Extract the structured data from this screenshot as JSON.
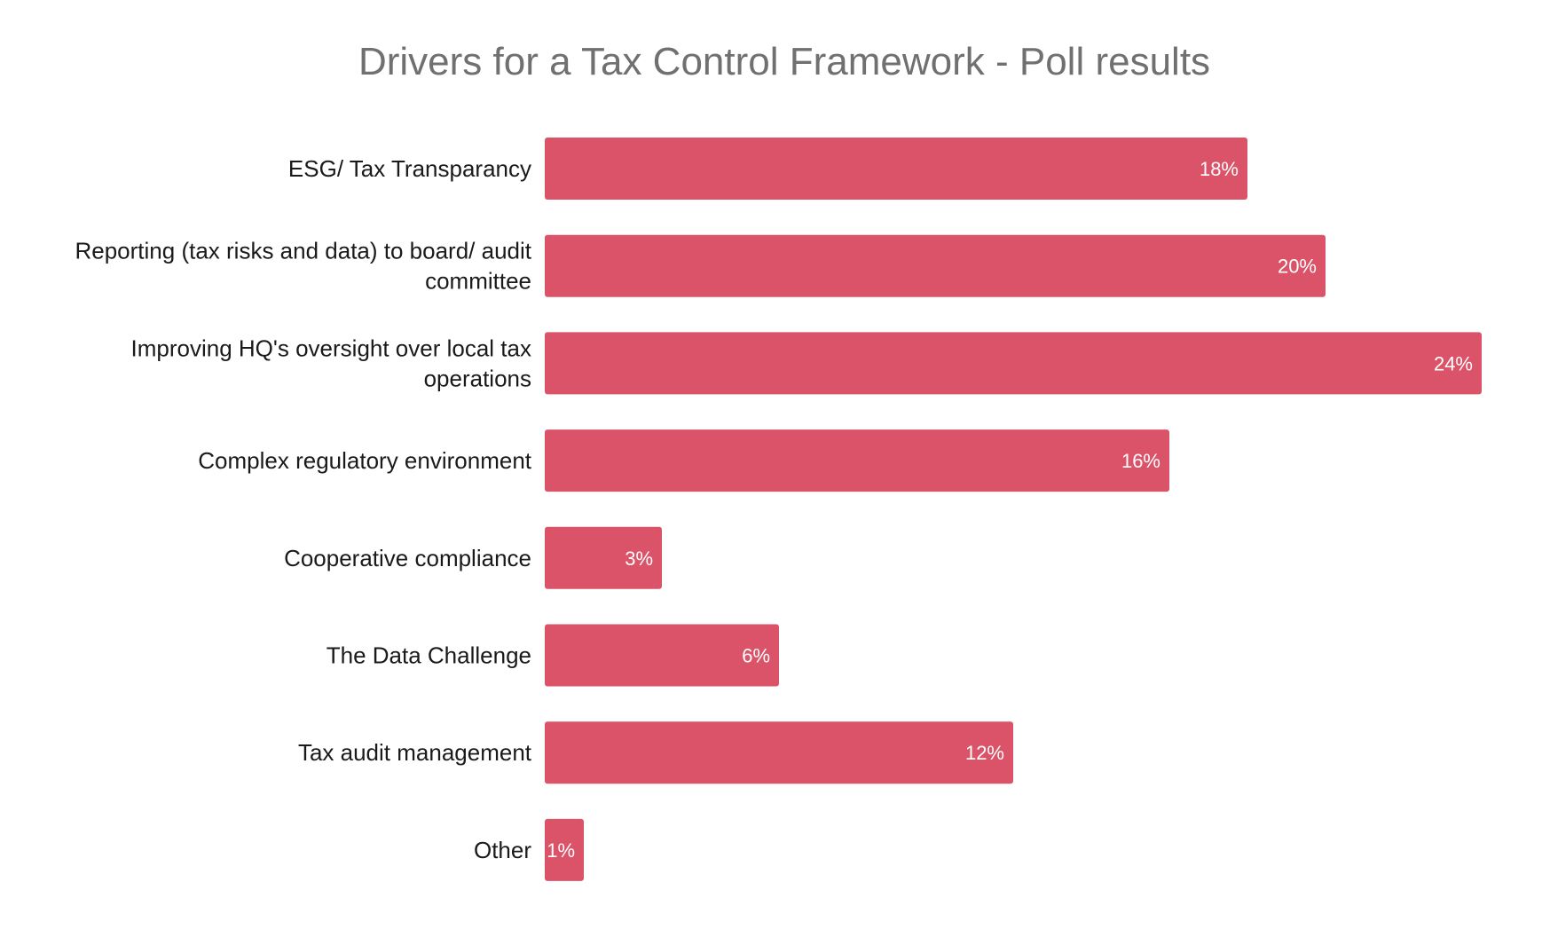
{
  "chart_data": {
    "type": "bar",
    "orientation": "horizontal",
    "title": "Drivers for a Tax Control Framework - Poll results",
    "xlabel": "",
    "ylabel": "",
    "categories": [
      "ESG/ Tax Transparancy",
      "Reporting (tax risks and data) to board/ audit committee",
      "Improving HQ's oversight over local tax operations",
      "Complex regulatory environment",
      "Cooperative compliance",
      "The Data Challenge",
      "Tax audit management",
      "Other"
    ],
    "category_label_lines": [
      [
        "ESG/ Tax Transparancy"
      ],
      [
        "Reporting (tax risks and data) to board/ audit",
        "committee"
      ],
      [
        "Improving HQ's oversight over local tax",
        "operations"
      ],
      [
        "Complex regulatory environment"
      ],
      [
        "Cooperative compliance"
      ],
      [
        "The Data Challenge"
      ],
      [
        "Tax audit management"
      ],
      [
        "Other"
      ]
    ],
    "values": [
      18,
      20,
      24,
      16,
      3,
      6,
      12,
      1
    ],
    "value_labels": [
      "18%",
      "20%",
      "24%",
      "16%",
      "3%",
      "6%",
      "12%",
      "1%"
    ],
    "xlim": [
      0,
      24
    ],
    "unit": "%",
    "grid": false,
    "legend": "none",
    "bar_color": "#db5368"
  }
}
